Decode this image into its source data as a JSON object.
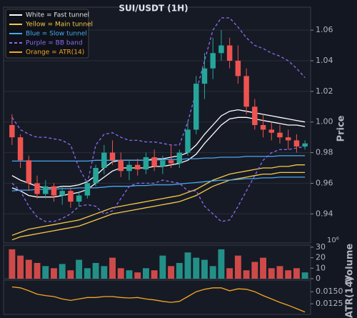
{
  "chart_data": [
    {
      "type": "candlestick",
      "title": "SUI/USDT (1H)",
      "ylabel": "Price",
      "ylim": [
        0.921,
        1.075
      ],
      "yticks": [
        0.94,
        0.96,
        0.98,
        {
          "value": 1,
          "label": "1.00"
        },
        1.02,
        1.04,
        1.06
      ],
      "grid": true,
      "legend": "upper left",
      "up_color": "#26a69a",
      "down_color": "#ef5350",
      "open": [
        0.998,
        0.99,
        0.975,
        0.96,
        0.953,
        0.958,
        0.952,
        0.955,
        0.948,
        0.952,
        0.96,
        0.97,
        0.98,
        0.975,
        0.968,
        0.972,
        0.969,
        0.977,
        0.971,
        0.975,
        0.973,
        0.98,
        0.995,
        1.025,
        1.035,
        1.045,
        1.05,
        1.04,
        1.03,
        1.01,
        0.998,
        0.995,
        0.993,
        0.99,
        0.988,
        0.984
      ],
      "high": [
        1.005,
        0.992,
        0.978,
        0.965,
        0.962,
        0.96,
        0.958,
        0.957,
        0.955,
        0.962,
        0.972,
        0.985,
        0.988,
        0.98,
        0.975,
        0.976,
        0.98,
        0.982,
        0.978,
        0.985,
        0.982,
        1.0,
        1.03,
        1.045,
        1.055,
        1.06,
        1.055,
        1.05,
        1.035,
        1.015,
        1.005,
        1.0,
        0.998,
        0.995,
        0.992,
        0.988
      ],
      "low": [
        0.985,
        0.97,
        0.955,
        0.95,
        0.95,
        0.948,
        0.946,
        0.944,
        0.945,
        0.95,
        0.958,
        0.966,
        0.972,
        0.964,
        0.962,
        0.965,
        0.966,
        0.968,
        0.966,
        0.97,
        0.97,
        0.978,
        0.992,
        1.015,
        1.028,
        1.04,
        1.035,
        1.025,
        1.005,
        0.995,
        0.99,
        0.988,
        0.986,
        0.982,
        0.98,
        0.982
      ],
      "close": [
        0.99,
        0.975,
        0.96,
        0.953,
        0.958,
        0.952,
        0.955,
        0.948,
        0.952,
        0.96,
        0.97,
        0.98,
        0.975,
        0.968,
        0.972,
        0.969,
        0.977,
        0.971,
        0.975,
        0.973,
        0.98,
        0.995,
        1.025,
        1.035,
        1.045,
        1.05,
        1.04,
        1.03,
        1.01,
        0.998,
        0.995,
        0.993,
        0.99,
        0.988,
        0.984,
        0.986
      ],
      "series": [
        {
          "name": "White = Fast tunnel",
          "color": "#ffffff",
          "dashed": false,
          "upper": [
            0.965,
            0.962,
            0.96,
            0.958,
            0.957,
            0.957,
            0.958,
            0.958,
            0.959,
            0.961,
            0.965,
            0.97,
            0.974,
            0.975,
            0.975,
            0.975,
            0.975,
            0.976,
            0.976,
            0.977,
            0.978,
            0.98,
            0.985,
            0.992,
            0.998,
            1.004,
            1.007,
            1.008,
            1.007,
            1.006,
            1.005,
            1.004,
            1.003,
            1.002,
            1.001,
            1.0
          ],
          "lower": [
            0.957,
            0.955,
            0.952,
            0.951,
            0.951,
            0.951,
            0.952,
            0.953,
            0.954,
            0.956,
            0.96,
            0.964,
            0.968,
            0.97,
            0.97,
            0.97,
            0.97,
            0.971,
            0.971,
            0.972,
            0.973,
            0.975,
            0.979,
            0.986,
            0.992,
            0.998,
            1.002,
            1.003,
            1.003,
            1.002,
            1.001,
            1.0,
            0.999,
            0.998,
            0.998,
            0.997
          ]
        },
        {
          "name": "Yellow = Main tunnel",
          "color": "#f7c948",
          "dashed": false,
          "upper": [
            0.926,
            0.928,
            0.93,
            0.931,
            0.932,
            0.933,
            0.934,
            0.935,
            0.936,
            0.938,
            0.94,
            0.942,
            0.944,
            0.945,
            0.946,
            0.947,
            0.948,
            0.949,
            0.95,
            0.951,
            0.952,
            0.954,
            0.956,
            0.959,
            0.962,
            0.964,
            0.966,
            0.967,
            0.968,
            0.969,
            0.97,
            0.97,
            0.971,
            0.971,
            0.972,
            0.972
          ],
          "lower": [
            0.923,
            0.925,
            0.926,
            0.927,
            0.928,
            0.929,
            0.93,
            0.931,
            0.932,
            0.934,
            0.936,
            0.938,
            0.94,
            0.941,
            0.942,
            0.943,
            0.944,
            0.945,
            0.946,
            0.947,
            0.948,
            0.95,
            0.952,
            0.955,
            0.958,
            0.96,
            0.962,
            0.963,
            0.964,
            0.965,
            0.966,
            0.966,
            0.967,
            0.967,
            0.967,
            0.967
          ]
        },
        {
          "name": "Blue = Slow tunnel",
          "color": "#4aa8f0",
          "dashed": false,
          "upper": [
            0.9745,
            0.9745,
            0.9745,
            0.9745,
            0.9745,
            0.9745,
            0.9745,
            0.9745,
            0.9745,
            0.9745,
            0.975,
            0.975,
            0.975,
            0.975,
            0.975,
            0.975,
            0.975,
            0.975,
            0.9755,
            0.9755,
            0.9755,
            0.976,
            0.976,
            0.9765,
            0.9765,
            0.977,
            0.977,
            0.977,
            0.9775,
            0.9775,
            0.9775,
            0.9775,
            0.978,
            0.978,
            0.978,
            0.978
          ],
          "lower": [
            0.955,
            0.9555,
            0.9555,
            0.956,
            0.956,
            0.956,
            0.9565,
            0.9565,
            0.957,
            0.957,
            0.957,
            0.9575,
            0.958,
            0.958,
            0.958,
            0.9585,
            0.9585,
            0.959,
            0.959,
            0.959,
            0.9595,
            0.96,
            0.9605,
            0.961,
            0.9615,
            0.962,
            0.962,
            0.9625,
            0.963,
            0.963,
            0.9635,
            0.9635,
            0.964,
            0.964,
            0.964,
            0.964
          ]
        },
        {
          "name": "Purple = BB band",
          "color": "#8c6cf0",
          "dashed": true,
          "upper": [
            1.003,
            0.995,
            0.992,
            0.99,
            0.99,
            0.989,
            0.988,
            0.985,
            0.97,
            0.96,
            0.985,
            0.992,
            0.993,
            0.99,
            0.988,
            0.988,
            0.987,
            0.987,
            0.986,
            0.985,
            0.985,
            1.0,
            1.02,
            1.04,
            1.06,
            1.068,
            1.068,
            1.062,
            1.055,
            1.05,
            1.048,
            1.045,
            1.043,
            1.04,
            1.035,
            1.029
          ],
          "lower": [
            0.96,
            0.955,
            0.945,
            0.938,
            0.935,
            0.935,
            0.937,
            0.94,
            0.945,
            0.946,
            0.945,
            0.94,
            0.942,
            0.95,
            0.958,
            0.96,
            0.96,
            0.96,
            0.962,
            0.961,
            0.96,
            0.955,
            0.955,
            0.945,
            0.94,
            0.935,
            0.936,
            0.945,
            0.955,
            0.965,
            0.975,
            0.98,
            0.982,
            0.982,
            0.983,
            0.984
          ]
        }
      ]
    },
    {
      "type": "bar",
      "ylabel": "Volume",
      "offset_label": "10⁶",
      "ylim": [
        0,
        32
      ],
      "yticks": [
        0,
        10,
        20,
        30
      ],
      "values": [
        28,
        22,
        18,
        15,
        12,
        10,
        14,
        8,
        18,
        10,
        15,
        12,
        20,
        10,
        8,
        6,
        10,
        8,
        22,
        12,
        15,
        25,
        20,
        18,
        12,
        28,
        10,
        22,
        8,
        16,
        20,
        10,
        12,
        8,
        10,
        6
      ]
    },
    {
      "type": "line",
      "ylabel": "ATR(14)",
      "ylim": [
        0.0103,
        0.0174
      ],
      "yticks": [
        0.0125,
        {
          "value": 0.015,
          "label": "0.0150"
        }
      ],
      "series": [
        {
          "name": "Orange = ATR(14)",
          "color": "#f5a623",
          "values": [
            0.016,
            0.0158,
            0.0152,
            0.0145,
            0.0142,
            0.014,
            0.0135,
            0.0132,
            0.0135,
            0.0138,
            0.0138,
            0.014,
            0.014,
            0.0138,
            0.0137,
            0.0138,
            0.0135,
            0.0133,
            0.013,
            0.0128,
            0.013,
            0.014,
            0.015,
            0.0155,
            0.0158,
            0.0158,
            0.0152,
            0.0156,
            0.0155,
            0.015,
            0.0142,
            0.0135,
            0.0128,
            0.0122,
            0.0115,
            0.0108
          ]
        }
      ]
    }
  ]
}
